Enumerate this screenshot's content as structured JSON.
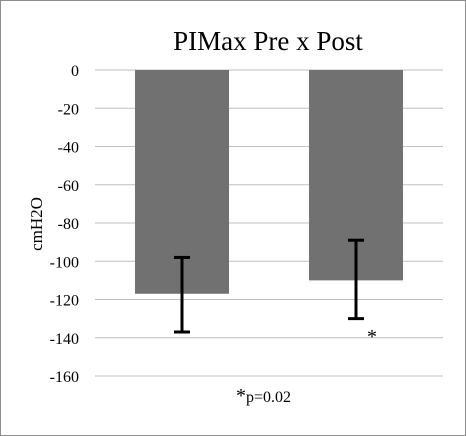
{
  "chart_data": {
    "type": "bar",
    "title": "PIMax Pre x Post",
    "xlabel": "",
    "ylabel": "cmH2O",
    "categories": [
      "",
      ""
    ],
    "values": [
      -117,
      -110
    ],
    "error_bars": [
      {
        "low": -137,
        "high": -98
      },
      {
        "low": -130,
        "high": -89
      }
    ],
    "ylim": [
      -160,
      0
    ],
    "yticks": [
      0,
      -20,
      -40,
      -60,
      -80,
      -100,
      -120,
      -140,
      -160
    ],
    "grid": true,
    "legend": "none",
    "significance_marker": {
      "bar_index": 1,
      "label": "*"
    },
    "footnote": {
      "star": "*",
      "text": "p=0.02"
    },
    "colors": {
      "bar": "#717171",
      "grid": "#bfbfbf",
      "error": "#000000",
      "text": "#000000"
    }
  }
}
